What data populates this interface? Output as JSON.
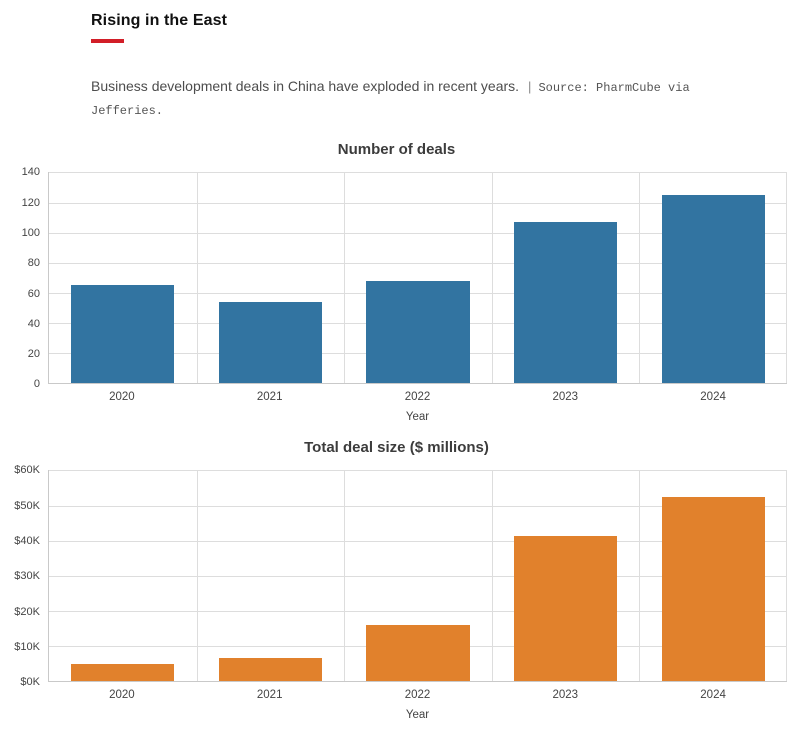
{
  "header": {
    "title": "Rising in the East",
    "accent_color": "#d21e28",
    "subtitle": "Business development deals in China have exploded in recent years.",
    "separator": "|",
    "source": "Source: PharmCube via Jefferies."
  },
  "chart_data": [
    {
      "type": "bar",
      "title": "Number of deals",
      "xlabel": "Year",
      "ylabel": "",
      "categories": [
        "2020",
        "2021",
        "2022",
        "2023",
        "2024"
      ],
      "values": [
        65,
        54,
        68,
        107,
        125
      ],
      "ylim": [
        0,
        140
      ],
      "ytick_labels": [
        "0",
        "20",
        "40",
        "60",
        "80",
        "100",
        "120",
        "140"
      ],
      "bar_color": "#3274a1",
      "grid": true,
      "legend": false
    },
    {
      "type": "bar",
      "title": "Total deal size ($ millions)",
      "xlabel": "Year",
      "ylabel": "",
      "categories": [
        "2020",
        "2021",
        "2022",
        "2023",
        "2024"
      ],
      "values": [
        4900,
        6600,
        16100,
        41300,
        52300
      ],
      "ylim": [
        0,
        60000
      ],
      "ytick_labels": [
        "$0K",
        "$10K",
        "$20K",
        "$30K",
        "$40K",
        "$50K",
        "$60K"
      ],
      "bar_color": "#e1812c",
      "grid": true,
      "legend": false
    }
  ]
}
